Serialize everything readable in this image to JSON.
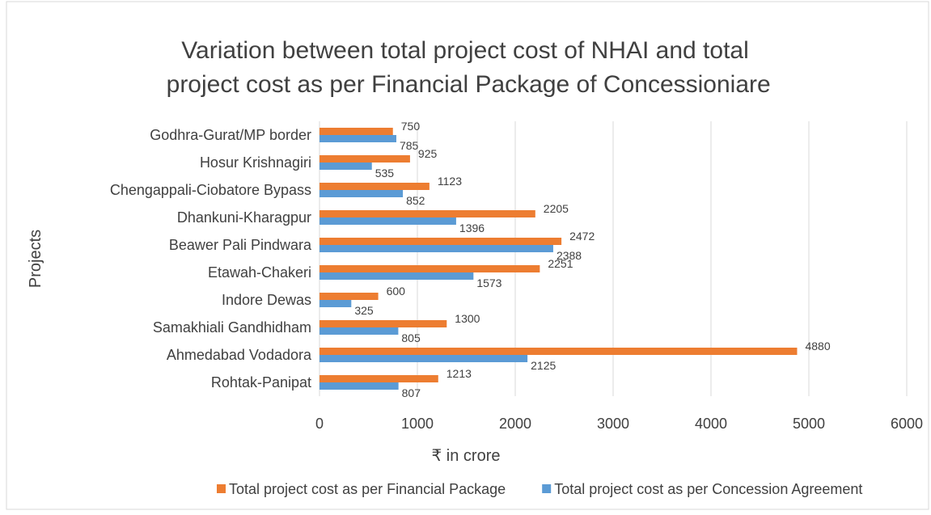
{
  "chart_data": {
    "type": "hbar",
    "title": "Variation between total project cost of NHAI and total project cost as per Financial Package of Concessioniare",
    "xlabel": "₹ in crore",
    "ylabel": "Projects",
    "categories": [
      "Godhra-Gurat/MP border",
      "Hosur Krishnagiri",
      "Chengappali-Ciobatore Bypass",
      "Dhankuni-Kharagpur",
      "Beawer Pali Pindwara",
      "Etawah-Chakeri",
      "Indore Dewas",
      "Samakhiali Gandhidham",
      "Ahmedabad Vodadora",
      "Rohtak-Panipat"
    ],
    "series": [
      {
        "name": "Total project cost as per Financial Package",
        "color": "#ed7d31",
        "values": [
          750,
          925,
          1123,
          2205,
          2472,
          2251,
          600,
          1300,
          4880,
          1213
        ]
      },
      {
        "name": "Total project cost as per Concession Agreement",
        "color": "#5b9bd5",
        "values": [
          785,
          535,
          852,
          1396,
          2388,
          1573,
          325,
          805,
          2125,
          807
        ]
      }
    ],
    "xlim": [
      0,
      6000
    ],
    "xticks": [
      0,
      1000,
      2000,
      3000,
      4000,
      5000,
      6000
    ],
    "grid": true,
    "legend": "bottom"
  }
}
